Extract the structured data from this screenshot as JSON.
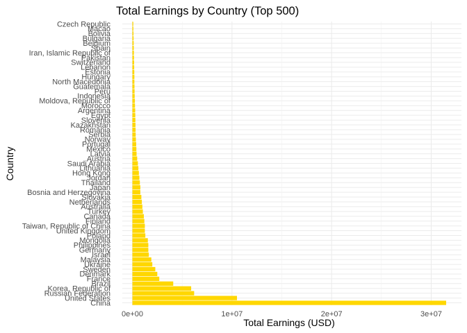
{
  "chart_data": {
    "type": "bar",
    "orientation": "horizontal",
    "title": "Total Earnings by Country (Top 500)",
    "xlabel": "Total Earnings (USD)",
    "ylabel": "Country",
    "xlim": [
      0,
      32000000
    ],
    "x_ticks": [
      {
        "value": 0,
        "label": "0e+00"
      },
      {
        "value": 10000000,
        "label": "1e+07"
      },
      {
        "value": 20000000,
        "label": "2e+07"
      },
      {
        "value": 30000000,
        "label": "3e+07"
      }
    ],
    "grid": true,
    "bar_color": "#FFD700",
    "categories": [
      "China",
      "United States",
      "Russian Federation",
      "Korea, Republic of",
      "Brazil",
      "France",
      "Denmark",
      "Sweden",
      "Ukraine",
      "Malaysia",
      "Israel",
      "Germany",
      "Philippines",
      "Mongolia",
      "Poland",
      "United Kingdom",
      "Taiwan, Republic of China",
      "Finland",
      "Canada",
      "Turkey",
      "Australia",
      "Netherlands",
      "Slovakia",
      "Bosnia and Herzegovina",
      "Japan",
      "Thailand",
      "Jordan",
      "Hong Kong",
      "Lithuania",
      "Saudi Arabia",
      "Austria",
      "Latvia",
      "Mexico",
      "Portugal",
      "Norway",
      "Serbia",
      "Romania",
      "Kazakhstan",
      "Slovenia",
      "Egypt",
      "Argentina",
      "Morocco",
      "Moldova, Republic of",
      "Indonesia",
      "Peru",
      "Guatemala",
      "North Macedonia",
      "Hungary",
      "Estonia",
      "Lebanon",
      "Switzerland",
      "Pakistan",
      "Iran, Islamic Republic of",
      "Spain",
      "Belgium",
      "Bulgaria",
      "Bolivia",
      "Macao",
      "Czech Republic"
    ],
    "values": [
      31500000,
      10500000,
      6200000,
      5900000,
      4100000,
      2700000,
      2500000,
      2300000,
      2000000,
      1900000,
      1650000,
      1600000,
      1600000,
      1550000,
      1300000,
      1250000,
      1250000,
      1200000,
      1150000,
      1050000,
      1000000,
      950000,
      900000,
      800000,
      800000,
      750000,
      700000,
      650000,
      600000,
      550000,
      480000,
      420000,
      400000,
      380000,
      350000,
      330000,
      320000,
      310000,
      300000,
      290000,
      280000,
      260000,
      250000,
      230000,
      220000,
      210000,
      200000,
      200000,
      190000,
      180000,
      170000,
      160000,
      150000,
      140000,
      130000,
      120000,
      110000,
      100000,
      90000
    ]
  }
}
